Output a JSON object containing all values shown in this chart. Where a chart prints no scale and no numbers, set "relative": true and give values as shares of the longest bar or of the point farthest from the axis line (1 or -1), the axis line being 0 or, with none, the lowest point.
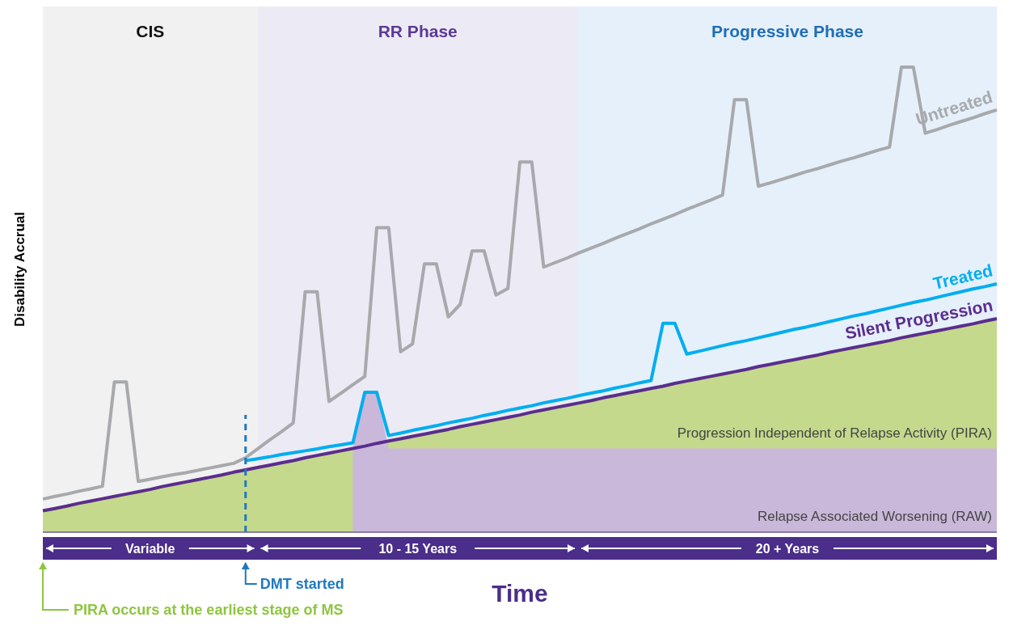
{
  "chart_data": {
    "type": "line",
    "relative": true,
    "xlabel": "Time",
    "ylabel": "Disability Accrual",
    "categories": [
      null,
      null,
      null,
      null,
      null,
      null,
      null,
      null,
      null,
      null,
      null,
      null,
      null,
      null,
      null,
      null,
      null,
      null,
      null,
      null,
      null,
      null,
      null,
      null,
      null,
      null,
      null,
      null,
      null,
      null,
      null,
      null,
      null,
      null,
      null,
      null,
      null,
      null,
      null,
      null,
      null,
      null,
      null,
      null,
      null,
      null,
      null,
      null,
      null,
      null,
      null,
      null,
      null,
      null,
      null,
      null,
      null,
      null,
      null,
      null,
      null,
      null,
      null,
      null,
      null,
      null,
      null,
      null,
      null,
      null,
      null,
      null,
      null,
      null,
      null,
      null,
      null,
      null,
      null,
      null,
      null
    ],
    "annotations": [
      "CIS",
      "RR Phase",
      "Progressive Phase",
      "Variable",
      "10 - 15 Years",
      "20 + Years",
      "DMT started",
      "PIRA occurs at the earliest stage of MS",
      "Progression Independent of Relapse Activity (PIRA)",
      "Relapse Associated Worsening (RAW)"
    ],
    "series": [
      {
        "name": "Silent Progression",
        "color": "#5b2d8e",
        "values": [
          0.046,
          0.051,
          0.056,
          0.062,
          0.067,
          0.072,
          0.077,
          0.082,
          0.087,
          0.092,
          0.098,
          0.103,
          0.108,
          0.113,
          0.118,
          0.123,
          0.129,
          0.134,
          0.139,
          0.144,
          0.149,
          0.154,
          0.16,
          0.165,
          0.17,
          0.175,
          0.18,
          0.185,
          0.191,
          0.196,
          0.201,
          0.206,
          0.211,
          0.216,
          0.221,
          0.227,
          0.232,
          0.237,
          0.242,
          0.247,
          0.252,
          0.258,
          0.263,
          0.268,
          0.273,
          0.278,
          0.283,
          0.289,
          0.294,
          0.299,
          0.304,
          0.309,
          0.314,
          0.32,
          0.325,
          0.33,
          0.335,
          0.34,
          0.345,
          0.35,
          0.356,
          0.361,
          0.366,
          0.371,
          0.376,
          0.381,
          0.387,
          0.392,
          0.397,
          0.402,
          0.407,
          0.412,
          0.418,
          0.423,
          0.428,
          0.433,
          0.438,
          0.443,
          0.448,
          0.454,
          0.459
        ]
      },
      {
        "name": "Treated",
        "color": "#00aeef",
        "values": [
          null,
          null,
          null,
          null,
          null,
          null,
          null,
          null,
          null,
          null,
          null,
          null,
          null,
          null,
          null,
          null,
          null,
          0.154,
          0.158,
          0.162,
          0.167,
          0.171,
          0.175,
          0.179,
          0.184,
          0.188,
          0.192,
          0.301,
          0.301,
          0.208,
          0.213,
          0.219,
          0.224,
          0.229,
          0.235,
          0.24,
          0.245,
          0.251,
          0.256,
          0.262,
          0.267,
          0.272,
          0.278,
          0.283,
          0.288,
          0.294,
          0.299,
          0.304,
          0.31,
          0.315,
          0.321,
          0.326,
          0.449,
          0.449,
          0.383,
          0.389,
          0.395,
          0.401,
          0.407,
          0.412,
          0.418,
          0.424,
          0.43,
          0.436,
          0.441,
          0.447,
          0.453,
          0.459,
          0.465,
          0.47,
          0.476,
          0.482,
          0.488,
          0.494,
          0.499,
          0.505,
          0.511,
          0.517,
          0.523,
          0.528,
          0.534
        ]
      },
      {
        "name": "Untreated",
        "color": "#a7a9ac",
        "values": [
          0.071,
          0.077,
          0.082,
          0.088,
          0.093,
          0.099,
          0.323,
          0.323,
          0.109,
          0.114,
          0.119,
          0.124,
          0.128,
          0.133,
          0.138,
          0.143,
          0.148,
          0.16,
          0.179,
          0.198,
          0.216,
          0.235,
          0.517,
          0.517,
          0.281,
          0.299,
          0.317,
          0.335,
          0.655,
          0.655,
          0.388,
          0.405,
          0.577,
          0.577,
          0.463,
          0.49,
          0.605,
          0.605,
          0.51,
          0.524,
          0.796,
          0.796,
          0.57,
          0.58,
          0.59,
          0.601,
          0.611,
          0.621,
          0.632,
          0.642,
          0.652,
          0.663,
          0.673,
          0.683,
          0.694,
          0.704,
          0.714,
          0.725,
          0.93,
          0.93,
          0.744,
          0.751,
          0.759,
          0.767,
          0.775,
          0.782,
          0.79,
          0.798,
          0.805,
          0.813,
          0.821,
          0.828,
          1,
          1,
          0.858,
          0.866,
          0.875,
          0.883,
          0.891,
          0.9,
          0.908
        ]
      }
    ]
  }
}
